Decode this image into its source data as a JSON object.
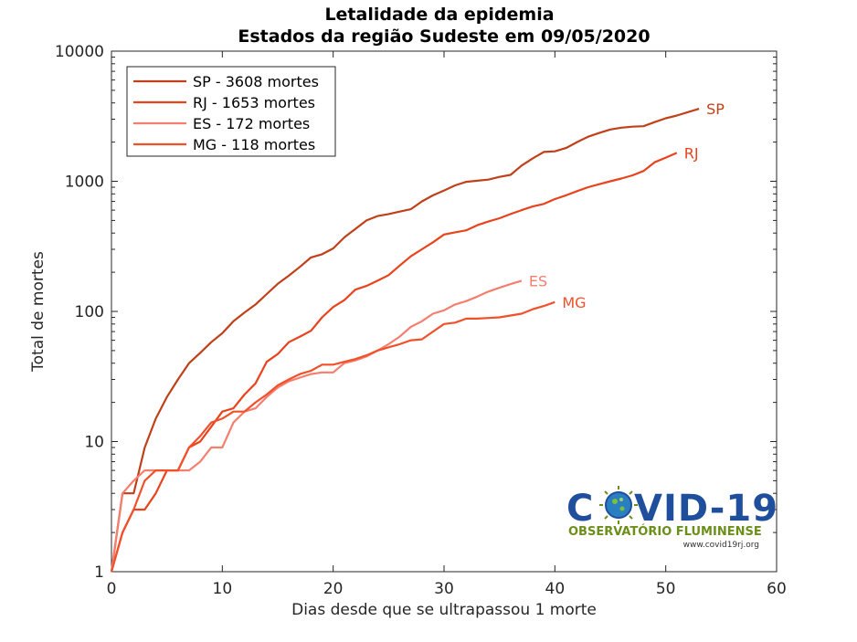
{
  "chart_data": {
    "type": "line",
    "title": "Letalidade da epidemia",
    "subtitle": "Estados da região Sudeste  em 09/05/2020",
    "xlabel": "Dias desde que se ultrapassou 1 morte",
    "ylabel": "Total de mortes",
    "xlim": [
      0,
      60
    ],
    "ylim": [
      1,
      10000
    ],
    "yscale": "log",
    "grid": false,
    "legend_position": "top-left",
    "x_ticks": [
      0,
      10,
      20,
      30,
      40,
      50,
      60
    ],
    "y_ticks": [
      1,
      10,
      100,
      1000,
      10000
    ],
    "series": [
      {
        "name": "SP - 3608 mortes",
        "end_label": "SP",
        "color": "#c0401a",
        "x": [
          0,
          1,
          2,
          3,
          4,
          5,
          6,
          7,
          8,
          9,
          10,
          11,
          12,
          13,
          14,
          15,
          16,
          17,
          18,
          19,
          20,
          21,
          22,
          23,
          24,
          25,
          26,
          27,
          28,
          29,
          30,
          31,
          32,
          33,
          34,
          35,
          36,
          37,
          38,
          39,
          40,
          41,
          42,
          43,
          44,
          45,
          46,
          47,
          48,
          49,
          50,
          51,
          52,
          53
        ],
        "y": [
          1,
          4,
          4,
          9,
          15,
          22,
          30,
          40,
          48,
          58,
          68,
          84,
          98,
          113,
          136,
          163,
          188,
          220,
          260,
          275,
          305,
          370,
          430,
          500,
          540,
          560,
          585,
          610,
          700,
          780,
          850,
          930,
          990,
          1010,
          1030,
          1080,
          1120,
          1320,
          1500,
          1680,
          1700,
          1800,
          2000,
          2200,
          2350,
          2500,
          2580,
          2630,
          2650,
          2850,
          3050,
          3200,
          3400,
          3608
        ]
      },
      {
        "name": "RJ - 1653 mortes",
        "end_label": "RJ",
        "color": "#e8431c",
        "x": [
          0,
          1,
          2,
          3,
          4,
          5,
          6,
          7,
          8,
          9,
          10,
          11,
          12,
          13,
          14,
          15,
          16,
          17,
          18,
          19,
          20,
          21,
          22,
          23,
          24,
          25,
          26,
          27,
          28,
          29,
          30,
          31,
          32,
          33,
          34,
          35,
          36,
          37,
          38,
          39,
          40,
          41,
          42,
          43,
          44,
          45,
          46,
          47,
          48,
          49,
          50,
          51
        ],
        "y": [
          1,
          2,
          3,
          3,
          4,
          6,
          6,
          9,
          10,
          13,
          17,
          18,
          23,
          28,
          41,
          47,
          58,
          64,
          71,
          90,
          108,
          122,
          147,
          157,
          172,
          190,
          225,
          265,
          300,
          340,
          390,
          405,
          420,
          460,
          490,
          520,
          560,
          600,
          640,
          670,
          730,
          780,
          840,
          900,
          950,
          1000,
          1050,
          1110,
          1200,
          1400,
          1520,
          1653
        ]
      },
      {
        "name": "ES - 172 mortes",
        "end_label": "ES",
        "color": "#f57f6f",
        "x": [
          0,
          1,
          2,
          3,
          4,
          5,
          6,
          7,
          8,
          9,
          10,
          11,
          12,
          13,
          14,
          15,
          16,
          17,
          18,
          19,
          20,
          21,
          22,
          23,
          24,
          25,
          26,
          27,
          28,
          29,
          30,
          31,
          32,
          33,
          34,
          35,
          36,
          37
        ],
        "y": [
          1,
          4,
          5,
          6,
          6,
          6,
          6,
          6,
          7,
          9,
          9,
          14,
          17,
          18,
          22,
          26,
          29,
          31,
          33,
          34,
          34,
          40,
          42,
          45,
          50,
          56,
          64,
          76,
          84,
          96,
          102,
          113,
          120,
          130,
          142,
          152,
          162,
          172
        ]
      },
      {
        "name": "MG - 118 mortes",
        "end_label": "MG",
        "color": "#f0502a",
        "x": [
          0,
          1,
          2,
          3,
          4,
          5,
          6,
          7,
          8,
          9,
          10,
          11,
          12,
          13,
          14,
          15,
          16,
          17,
          18,
          19,
          20,
          21,
          22,
          23,
          24,
          25,
          26,
          27,
          28,
          29,
          30,
          31,
          32,
          33,
          34,
          35,
          36,
          37,
          38,
          39,
          40
        ],
        "y": [
          1,
          2,
          3,
          5,
          6,
          6,
          6,
          9,
          11,
          14,
          15,
          17,
          17,
          20,
          23,
          27,
          30,
          33,
          35,
          39,
          39,
          41,
          43,
          46,
          50,
          53,
          56,
          60,
          61,
          70,
          80,
          82,
          88,
          88,
          89,
          90,
          93,
          96,
          104,
          110,
          118
        ]
      }
    ]
  },
  "logo": {
    "title": "COVID-19",
    "subtitle": "OBSERVATÓRIO FLUMINENSE",
    "url": "www.covid19rj.org"
  }
}
